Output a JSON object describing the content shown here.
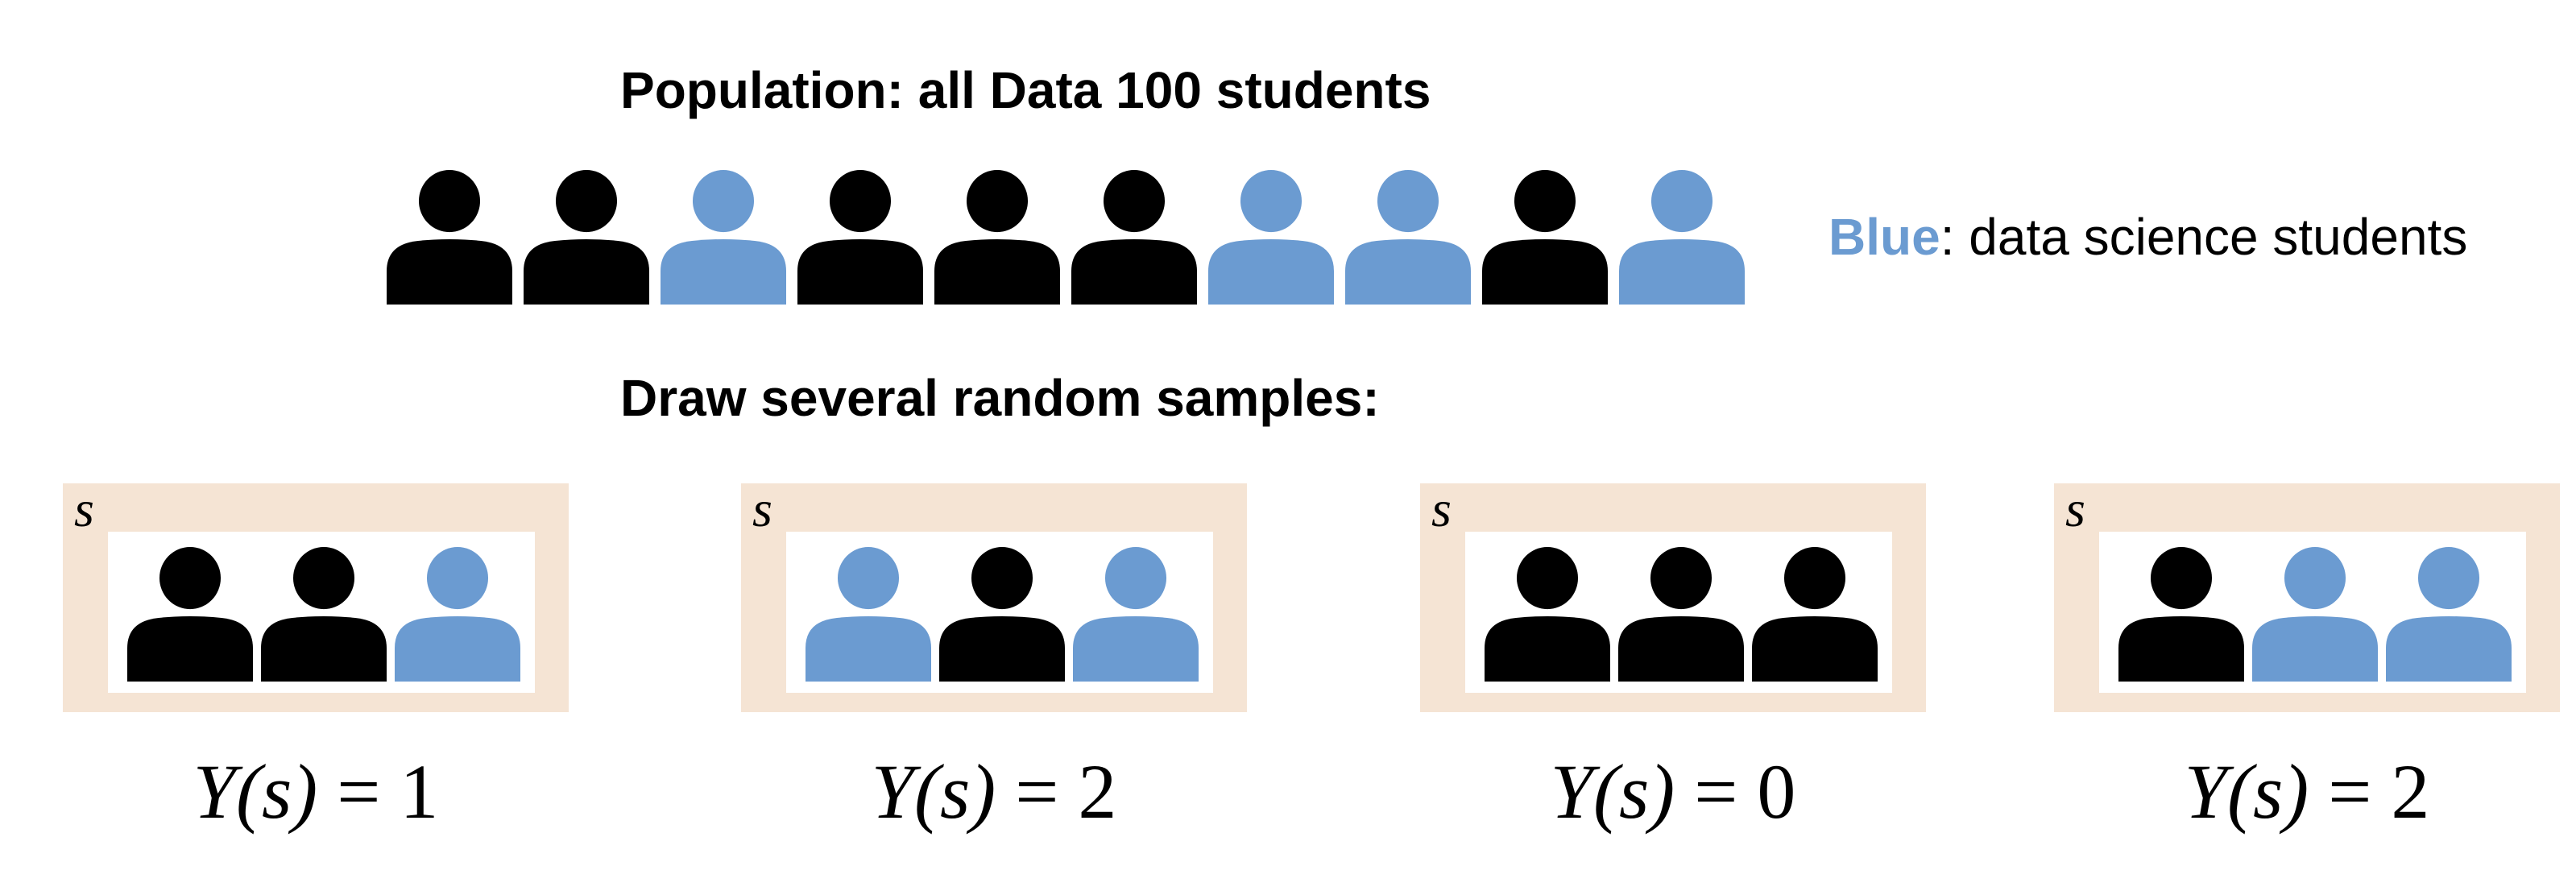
{
  "colors": {
    "highlight": "#6b9bd1",
    "other": "#000000",
    "sample_frame": "#f5e4d4",
    "sample_inner": "#ffffff"
  },
  "population": {
    "title": "Population: all Data 100 students",
    "people": [
      "other",
      "other",
      "highlight",
      "other",
      "other",
      "other",
      "highlight",
      "highlight",
      "other",
      "highlight"
    ]
  },
  "legend": {
    "key": "Blue",
    "text": ": data science students"
  },
  "samples_title": "Draw several random samples:",
  "samples": [
    {
      "label": "s",
      "people": [
        "other",
        "other",
        "highlight"
      ],
      "value_prefix": "Y(s)",
      "value_suffix": " = 1"
    },
    {
      "label": "s",
      "people": [
        "highlight",
        "other",
        "highlight"
      ],
      "value_prefix": "Y(s)",
      "value_suffix": " = 2"
    },
    {
      "label": "s",
      "people": [
        "other",
        "other",
        "other"
      ],
      "value_prefix": "Y(s)",
      "value_suffix": " = 0"
    },
    {
      "label": "s",
      "people": [
        "other",
        "highlight",
        "highlight"
      ],
      "value_prefix": "Y(s)",
      "value_suffix": " = 2"
    }
  ]
}
